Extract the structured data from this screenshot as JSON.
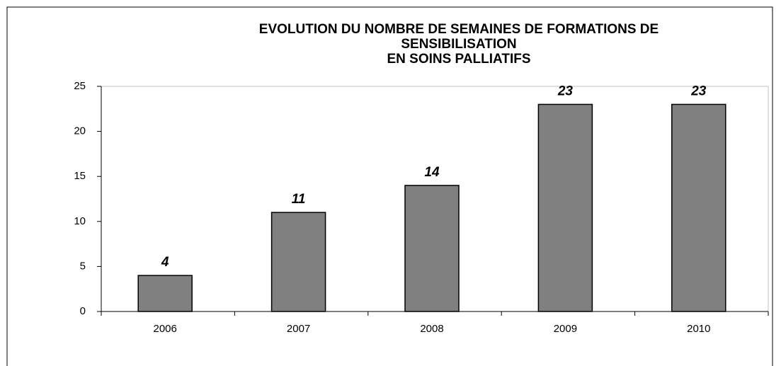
{
  "chart_data": {
    "type": "bar",
    "title": [
      "EVOLUTION DU NOMBRE DE SEMAINES DE FORMATIONS DE",
      "SENSIBILISATION",
      "EN SOINS PALLIATIFS"
    ],
    "categories": [
      "2006",
      "2007",
      "2008",
      "2009",
      "2010"
    ],
    "values": [
      4,
      11,
      14,
      23,
      23
    ],
    "color": "#808080",
    "ylim": [
      0,
      25
    ],
    "yticks": [
      0,
      5,
      10,
      15,
      20,
      25
    ],
    "grid": false,
    "data_labels": true
  }
}
